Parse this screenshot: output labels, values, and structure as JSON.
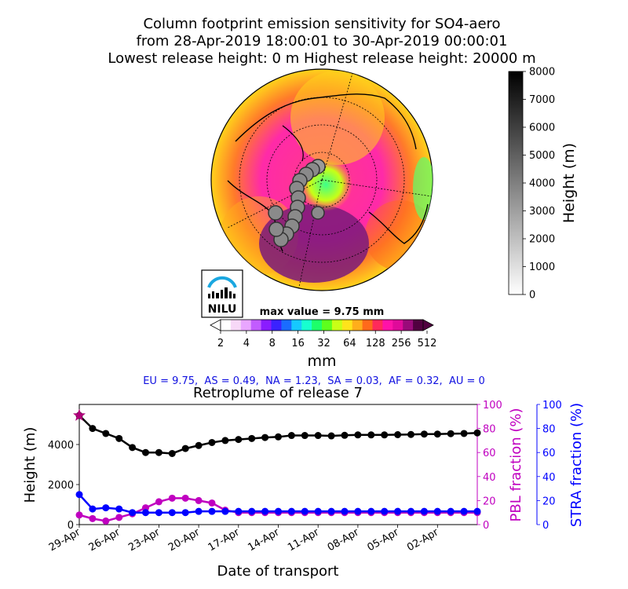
{
  "titles": {
    "line1": "Column footprint emission sensitivity for SO4-aero",
    "line2": "from 28-Apr-2019 18:00:01 to 30-Apr-2019 00:00:01",
    "line3": "Lowest release height: 0 m       Highest release height: 20000 m"
  },
  "logo": {
    "text": "NILU"
  },
  "map": {
    "max_value_label": "max value = 9.75 mm",
    "colorbar_ticks": [
      "2",
      "4",
      "8",
      "16",
      "32",
      "64",
      "128",
      "256",
      "512"
    ],
    "colorbar_unit": "mm",
    "colorbar_colors": [
      "#ffffff",
      "#f7d8f7",
      "#e9a6ff",
      "#c25cff",
      "#8a1cff",
      "#3a22ff",
      "#1a6cff",
      "#16c8ff",
      "#17ffd0",
      "#1dff6a",
      "#5dff1d",
      "#c8ff16",
      "#ffe41b",
      "#ffae1b",
      "#ff6a1b",
      "#ff2a5a",
      "#ff12a8",
      "#e00a9a",
      "#9a0a7a",
      "#520040"
    ]
  },
  "height_colorbar": {
    "label": "Height (m)",
    "ticks": [
      "0",
      "1000",
      "2000",
      "3000",
      "4000",
      "5000",
      "6000",
      "7000",
      "8000"
    ]
  },
  "sectors": {
    "text": "EU = 9.75,  AS = 0.49,  NA = 1.23,  SA = 0.03,  AF = 0.32,  AU = 0"
  },
  "chart_data": {
    "type": "line",
    "title": "Retroplume of release 7",
    "xlabel": "Date of transport",
    "x_tick_labels": [
      "29-Apr",
      "26-Apr",
      "23-Apr",
      "20-Apr",
      "17-Apr",
      "14-Apr",
      "11-Apr",
      "08-Apr",
      "05-Apr",
      "02-Apr"
    ],
    "x_days_back_range": [
      0,
      30
    ],
    "left_axis": {
      "label": "Height (m)",
      "ylim": [
        0,
        6000
      ],
      "ticks": [
        "0",
        "2000",
        "4000"
      ]
    },
    "right_axes": [
      {
        "label": "PBL fraction (%)",
        "ylim": [
          0,
          100
        ],
        "ticks": [
          "0",
          "20",
          "40",
          "60",
          "80",
          "100"
        ],
        "color": "#c000c0"
      },
      {
        "label": "STRA fraction (%)",
        "ylim": [
          0,
          100
        ],
        "ticks": [
          "0",
          "20",
          "40",
          "60",
          "80",
          "100"
        ],
        "color": "#0000ff"
      }
    ],
    "x": [
      0,
      1,
      2,
      3,
      4,
      5,
      6,
      7,
      8,
      9,
      10,
      11,
      12,
      13,
      14,
      15,
      16,
      17,
      18,
      19,
      20,
      21,
      22,
      23,
      24,
      25,
      26,
      27,
      28,
      29,
      30
    ],
    "series": [
      {
        "axis": "height",
        "color": "#000000",
        "values": [
          5450,
          4800,
          4550,
          4300,
          3850,
          3600,
          3600,
          3550,
          3800,
          3950,
          4100,
          4200,
          4250,
          4300,
          4350,
          4380,
          4450,
          4450,
          4450,
          4430,
          4460,
          4480,
          4480,
          4480,
          4490,
          4500,
          4520,
          4520,
          4540,
          4550,
          4580
        ]
      },
      {
        "axis": "pbl",
        "color": "#c000c0",
        "values": [
          8,
          5,
          3,
          6,
          9,
          14,
          19,
          22,
          22,
          20,
          18,
          12,
          10,
          10,
          10,
          10,
          10,
          10,
          10,
          10,
          10,
          10,
          10,
          10,
          10,
          10,
          10,
          10,
          10,
          10,
          10
        ]
      },
      {
        "axis": "stra",
        "color": "#0000ff",
        "values": [
          25,
          13,
          14,
          13,
          10,
          10,
          10,
          10,
          10,
          11,
          11,
          11,
          11,
          11,
          11,
          11,
          11,
          11,
          11,
          11,
          11,
          11,
          11,
          11,
          11,
          11,
          11,
          11,
          11,
          11,
          11
        ]
      }
    ],
    "release_marker": {
      "x": 0,
      "height": 5450
    }
  }
}
